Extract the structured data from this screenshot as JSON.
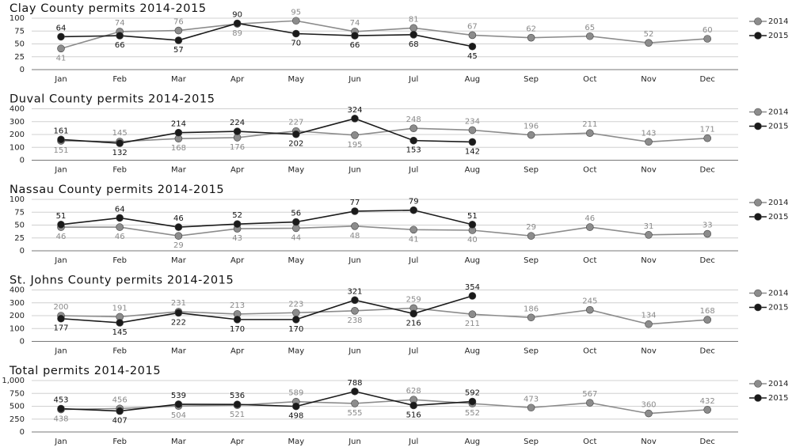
{
  "chart_data": [
    {
      "type": "line",
      "title": "Clay County permits 2014-2015",
      "categories": [
        "Jan",
        "Feb",
        "Mar",
        "Apr",
        "May",
        "Jun",
        "Jul",
        "Aug",
        "Sep",
        "Oct",
        "Nov",
        "Dec"
      ],
      "series": [
        {
          "name": "2014",
          "color": "#8c8c8c",
          "values": [
            41,
            74,
            76,
            89,
            95,
            74,
            81,
            67,
            62,
            65,
            52,
            60
          ]
        },
        {
          "name": "2015",
          "color": "#1a1a1a",
          "values": [
            64,
            66,
            57,
            90,
            70,
            66,
            68,
            45,
            null,
            null,
            null,
            null
          ]
        }
      ],
      "ylim": [
        0,
        100
      ],
      "yticks": [
        0,
        25,
        50,
        75,
        100
      ],
      "grid": true,
      "legend": "right"
    },
    {
      "type": "line",
      "title": "Duval County permits 2014-2015",
      "categories": [
        "Jan",
        "Feb",
        "Mar",
        "Apr",
        "May",
        "Jun",
        "Jul",
        "Aug",
        "Sep",
        "Oct",
        "Nov",
        "Dec"
      ],
      "series": [
        {
          "name": "2014",
          "color": "#8c8c8c",
          "values": [
            151,
            145,
            168,
            176,
            227,
            195,
            248,
            234,
            196,
            211,
            143,
            171
          ]
        },
        {
          "name": "2015",
          "color": "#1a1a1a",
          "values": [
            161,
            132,
            214,
            224,
            202,
            324,
            153,
            142,
            null,
            null,
            null,
            null
          ]
        }
      ],
      "ylim": [
        0,
        400
      ],
      "yticks": [
        0,
        100,
        200,
        300,
        400
      ],
      "grid": true,
      "legend": "right"
    },
    {
      "type": "line",
      "title": "Nassau County permits 2014-2015",
      "categories": [
        "Jan",
        "Feb",
        "Mar",
        "Apr",
        "May",
        "Jun",
        "Jul",
        "Aug",
        "Sep",
        "Oct",
        "Nov",
        "Dec"
      ],
      "series": [
        {
          "name": "2014",
          "color": "#8c8c8c",
          "values": [
            46,
            46,
            29,
            43,
            44,
            48,
            41,
            40,
            29,
            46,
            31,
            33
          ]
        },
        {
          "name": "2015",
          "color": "#1a1a1a",
          "values": [
            51,
            64,
            46,
            52,
            56,
            77,
            79,
            51,
            null,
            null,
            null,
            null
          ]
        }
      ],
      "ylim": [
        0,
        100
      ],
      "yticks": [
        0,
        25,
        50,
        75,
        100
      ],
      "grid": true,
      "legend": "right"
    },
    {
      "type": "line",
      "title": "St. Johns County permits 2014-2015",
      "categories": [
        "Jan",
        "Feb",
        "Mar",
        "Apr",
        "May",
        "Jun",
        "Jul",
        "Aug",
        "Sep",
        "Oct",
        "Nov",
        "Dec"
      ],
      "series": [
        {
          "name": "2014",
          "color": "#8c8c8c",
          "values": [
            200,
            191,
            231,
            213,
            223,
            238,
            259,
            211,
            186,
            245,
            134,
            168
          ]
        },
        {
          "name": "2015",
          "color": "#1a1a1a",
          "values": [
            177,
            145,
            222,
            170,
            170,
            321,
            216,
            354,
            null,
            null,
            null,
            null
          ]
        }
      ],
      "ylim": [
        0,
        400
      ],
      "yticks": [
        0,
        100,
        200,
        300,
        400
      ],
      "grid": true,
      "legend": "right"
    },
    {
      "type": "line",
      "title": "Total permits 2014-2015",
      "categories": [
        "Jan",
        "Feb",
        "Mar",
        "Apr",
        "May",
        "Jun",
        "Jul",
        "Aug",
        "Sep",
        "Oct",
        "Nov",
        "Dec"
      ],
      "series": [
        {
          "name": "2014",
          "color": "#8c8c8c",
          "values": [
            438,
            456,
            504,
            521,
            589,
            555,
            628,
            552,
            473,
            567,
            360,
            432
          ]
        },
        {
          "name": "2015",
          "color": "#1a1a1a",
          "values": [
            453,
            407,
            539,
            536,
            498,
            788,
            516,
            592,
            null,
            null,
            null,
            null
          ]
        }
      ],
      "ylim": [
        0,
        1000
      ],
      "yticks": [
        0,
        250,
        500,
        750,
        {
          "value": 1000,
          "label": "1,000"
        }
      ],
      "grid": true,
      "legend": "right"
    }
  ]
}
